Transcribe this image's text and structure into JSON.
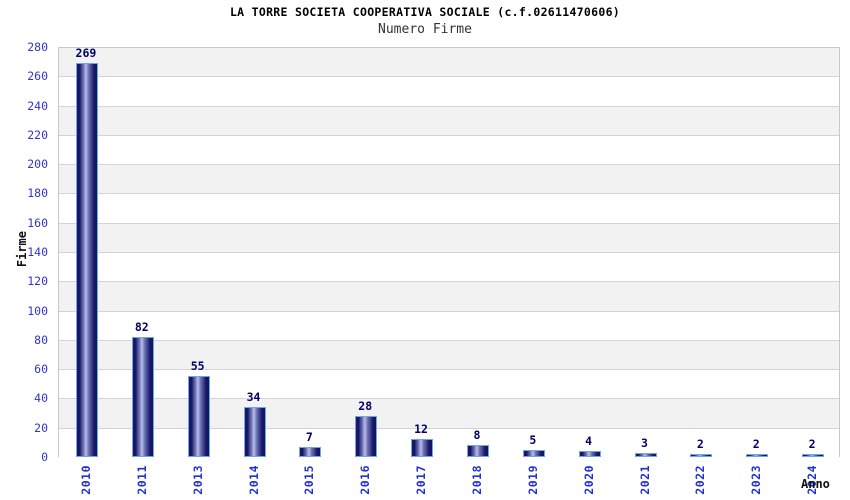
{
  "title": "LA TORRE SOCIETA COOPERATIVA SOCIALE (c.f.02611470606)",
  "subtitle": "Numero Firme",
  "chart_data": {
    "type": "bar",
    "title": "LA TORRE SOCIETA COOPERATIVA SOCIALE (c.f.02611470606)",
    "subtitle": "Numero Firme",
    "categories": [
      "2010",
      "2011",
      "2013",
      "2014",
      "2015",
      "2016",
      "2017",
      "2018",
      "2019",
      "2020",
      "2021",
      "2022",
      "2023",
      "2024"
    ],
    "values": [
      269,
      82,
      55,
      34,
      7,
      28,
      12,
      8,
      5,
      4,
      3,
      2,
      2,
      2
    ],
    "xlabel": "Anno",
    "ylabel": "Firme",
    "ylim": [
      0,
      280
    ],
    "ytick_step": 20,
    "grid": true,
    "legend_position": "none",
    "band_fill": "alternating horizontal stripes per 20 units",
    "colors": {
      "bar_dark": "#141460",
      "bar_mid": "#6f74b8",
      "bar_highlight": "#b8bce8",
      "bar_border": "#6fa8e0",
      "tick_label": "#3333cc",
      "x_tick_label": "#2233cc",
      "value_label": "#00006b",
      "band_gray": "#f2f2f2",
      "band_white": "#ffffff",
      "gridline": "#d4d4d4",
      "plot_border": "#c8c8c8",
      "title_color": "#000000",
      "subtitle_color": "#333333",
      "axis_title_color": "#111111"
    }
  }
}
